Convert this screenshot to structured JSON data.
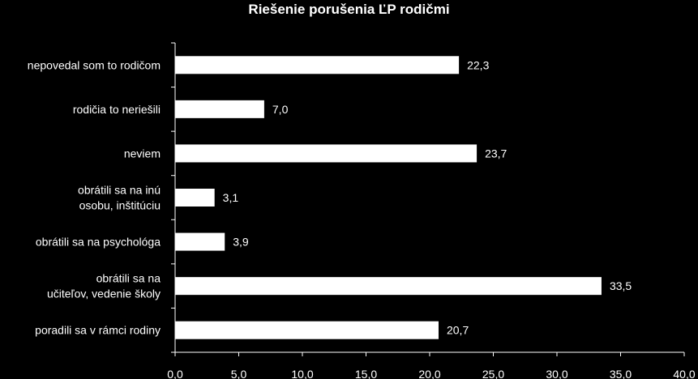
{
  "chart_data": {
    "type": "bar",
    "orientation": "horizontal",
    "title": "Riešenie  porušenia ĽP rodičmi",
    "categories": [
      [
        "nepovedal som to rodičom"
      ],
      [
        "rodičia to neriešili"
      ],
      [
        "neviem"
      ],
      [
        "obrátili sa na inú",
        "osobu, inštitúciu"
      ],
      [
        "obrátili sa na psychológa"
      ],
      [
        "obrátili sa na",
        "učiteľov, vedenie školy"
      ],
      [
        "poradili sa v rámci rodiny"
      ]
    ],
    "values": [
      22.3,
      7.0,
      23.7,
      3.1,
      3.9,
      33.5,
      20.7
    ],
    "value_labels": [
      "22,3",
      "7,0",
      "23,7",
      "3,1",
      "3,9",
      "33,5",
      "20,7"
    ],
    "xlim": [
      0,
      40
    ],
    "xticks": [
      0,
      5,
      10,
      15,
      20,
      25,
      30,
      35,
      40
    ],
    "xtick_labels": [
      "0,0",
      "5,0",
      "10,0",
      "15,0",
      "20,0",
      "25,0",
      "30,0",
      "35,0",
      "40,0"
    ],
    "grid": false,
    "bar_color": "#ffffff",
    "background": "#000000",
    "text_color": "#ffffff"
  }
}
